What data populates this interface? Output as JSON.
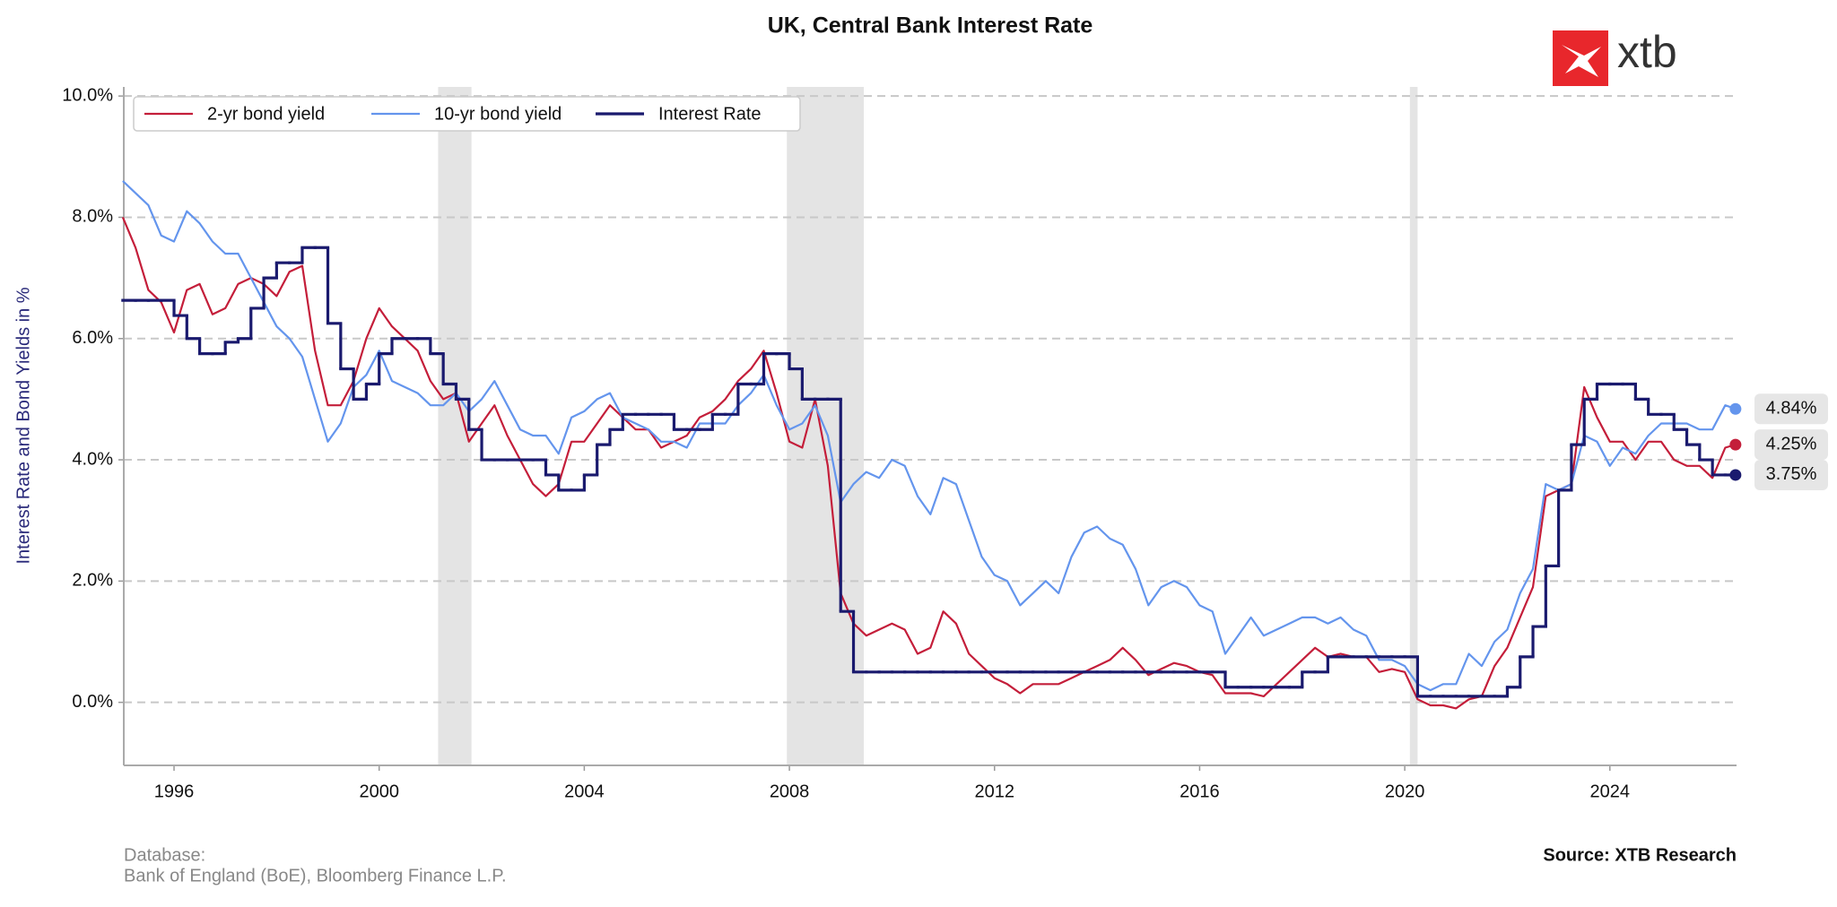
{
  "chart_data": {
    "type": "line",
    "title": "UK, Central Bank Interest Rate",
    "ylabel": "Interest Rate and Bond Yields in %",
    "logo": "xtb",
    "source_note": [
      "Database:",
      "Bank of England (BoE), Bloomberg Finance L.P."
    ],
    "source": "Source: XTB Research",
    "legend": "upper left",
    "grid": true,
    "xlim": [
      1995.02,
      2026.47
    ],
    "ylim": [
      -1.04,
      10.15
    ],
    "xticks": [
      1996,
      2000,
      2004,
      2008,
      2012,
      2016,
      2020,
      2024
    ],
    "yticks": [
      {
        "value": 0,
        "label": "0.0%"
      },
      {
        "value": 2,
        "label": "2.0%"
      },
      {
        "value": 4,
        "label": "4.0%"
      },
      {
        "value": 6,
        "label": "6.0%"
      },
      {
        "value": 8,
        "label": "8.0%"
      },
      {
        "value": 10,
        "label": "10.0%"
      }
    ],
    "shaded_spans": [
      [
        2001.15,
        2001.8
      ],
      [
        2007.95,
        2009.45
      ],
      [
        2020.1,
        2020.25
      ]
    ],
    "x": [
      1995,
      1995.25,
      1995.5,
      1995.75,
      1996,
      1996.25,
      1996.5,
      1996.75,
      1997,
      1997.25,
      1997.5,
      1997.75,
      1998,
      1998.25,
      1998.5,
      1998.75,
      1999,
      1999.25,
      1999.5,
      1999.75,
      2000,
      2000.25,
      2000.5,
      2000.75,
      2001,
      2001.25,
      2001.5,
      2001.75,
      2002,
      2002.25,
      2002.5,
      2002.75,
      2003,
      2003.25,
      2003.5,
      2003.75,
      2004,
      2004.25,
      2004.5,
      2004.75,
      2005,
      2005.25,
      2005.5,
      2005.75,
      2006,
      2006.25,
      2006.5,
      2006.75,
      2007,
      2007.25,
      2007.5,
      2007.75,
      2008,
      2008.25,
      2008.5,
      2008.75,
      2009,
      2009.25,
      2009.5,
      2009.75,
      2010,
      2010.25,
      2010.5,
      2010.75,
      2011,
      2011.25,
      2011.5,
      2011.75,
      2012,
      2012.25,
      2012.5,
      2012.75,
      2013,
      2013.25,
      2013.5,
      2013.75,
      2014,
      2014.25,
      2014.5,
      2014.75,
      2015,
      2015.25,
      2015.5,
      2015.75,
      2016,
      2016.25,
      2016.5,
      2016.75,
      2017,
      2017.25,
      2017.5,
      2017.75,
      2018,
      2018.25,
      2018.5,
      2018.75,
      2019,
      2019.25,
      2019.5,
      2019.75,
      2020,
      2020.25,
      2020.5,
      2020.75,
      2021,
      2021.25,
      2021.5,
      2021.75,
      2022,
      2022.25,
      2022.5,
      2022.75,
      2023,
      2023.25,
      2023.5,
      2023.75,
      2024,
      2024.25,
      2024.5,
      2024.75,
      2025,
      2025.25,
      2025.5,
      2025.75,
      2026,
      2026.25,
      2026.45
    ],
    "series": [
      {
        "name": "2-yr bond yield",
        "color": "#c41e3a",
        "end_label": "4.25%",
        "values": [
          8.0,
          7.5,
          6.8,
          6.6,
          6.1,
          6.8,
          6.9,
          6.4,
          6.5,
          6.9,
          7.0,
          6.9,
          6.7,
          7.1,
          7.2,
          5.8,
          4.9,
          4.9,
          5.3,
          6.0,
          6.5,
          6.2,
          6.0,
          5.8,
          5.3,
          5.0,
          5.1,
          4.3,
          4.6,
          4.9,
          4.4,
          4.0,
          3.6,
          3.4,
          3.6,
          4.3,
          4.3,
          4.6,
          4.9,
          4.7,
          4.5,
          4.5,
          4.2,
          4.3,
          4.4,
          4.7,
          4.8,
          5.0,
          5.3,
          5.5,
          5.8,
          5.1,
          4.3,
          4.2,
          5.0,
          3.9,
          1.8,
          1.3,
          1.1,
          1.2,
          1.3,
          1.2,
          0.8,
          0.9,
          1.5,
          1.3,
          0.8,
          0.6,
          0.4,
          0.3,
          0.15,
          0.3,
          0.3,
          0.3,
          0.4,
          0.5,
          0.6,
          0.7,
          0.9,
          0.7,
          0.45,
          0.55,
          0.65,
          0.6,
          0.5,
          0.45,
          0.15,
          0.15,
          0.15,
          0.1,
          0.3,
          0.5,
          0.7,
          0.9,
          0.75,
          0.8,
          0.75,
          0.75,
          0.5,
          0.55,
          0.5,
          0.05,
          -0.05,
          -0.05,
          -0.1,
          0.05,
          0.1,
          0.6,
          0.9,
          1.4,
          1.9,
          3.4,
          3.5,
          3.6,
          5.2,
          4.7,
          4.3,
          4.3,
          4.0,
          4.3,
          4.3,
          4.0,
          3.9,
          3.9,
          3.7,
          4.2,
          4.25
        ]
      },
      {
        "name": "10-yr bond yield",
        "color": "#6495ed",
        "end_label": "4.84%",
        "values": [
          8.6,
          8.4,
          8.2,
          7.7,
          7.6,
          8.1,
          7.9,
          7.6,
          7.4,
          7.4,
          7.0,
          6.6,
          6.2,
          6.0,
          5.7,
          5.0,
          4.3,
          4.6,
          5.2,
          5.4,
          5.8,
          5.3,
          5.2,
          5.1,
          4.9,
          4.9,
          5.1,
          4.8,
          5.0,
          5.3,
          4.9,
          4.5,
          4.4,
          4.4,
          4.1,
          4.7,
          4.8,
          5.0,
          5.1,
          4.7,
          4.6,
          4.5,
          4.3,
          4.3,
          4.2,
          4.6,
          4.6,
          4.6,
          4.9,
          5.1,
          5.4,
          4.9,
          4.5,
          4.6,
          4.9,
          4.4,
          3.3,
          3.6,
          3.8,
          3.7,
          4.0,
          3.9,
          3.4,
          3.1,
          3.7,
          3.6,
          3.0,
          2.4,
          2.1,
          2.0,
          1.6,
          1.8,
          2.0,
          1.8,
          2.4,
          2.8,
          2.9,
          2.7,
          2.6,
          2.2,
          1.6,
          1.9,
          2.0,
          1.9,
          1.6,
          1.5,
          0.8,
          1.1,
          1.4,
          1.1,
          1.2,
          1.3,
          1.4,
          1.4,
          1.3,
          1.4,
          1.2,
          1.1,
          0.7,
          0.7,
          0.6,
          0.3,
          0.2,
          0.3,
          0.3,
          0.8,
          0.6,
          1.0,
          1.2,
          1.8,
          2.2,
          3.6,
          3.5,
          3.6,
          4.4,
          4.3,
          3.9,
          4.2,
          4.1,
          4.4,
          4.6,
          4.6,
          4.6,
          4.5,
          4.5,
          4.9,
          4.84
        ]
      },
      {
        "name": "Interest Rate",
        "color": "#1a1a6e",
        "step": true,
        "end_label": "3.75%",
        "values": [
          6.63,
          6.63,
          6.63,
          6.63,
          6.38,
          6.0,
          5.75,
          5.75,
          5.94,
          6.0,
          6.5,
          7.0,
          7.25,
          7.25,
          7.5,
          7.5,
          6.25,
          5.5,
          5.0,
          5.25,
          5.75,
          6.0,
          6.0,
          6.0,
          5.75,
          5.25,
          5.0,
          4.5,
          4.0,
          4.0,
          4.0,
          4.0,
          4.0,
          3.75,
          3.5,
          3.5,
          3.75,
          4.25,
          4.5,
          4.75,
          4.75,
          4.75,
          4.75,
          4.5,
          4.5,
          4.5,
          4.75,
          4.75,
          5.25,
          5.25,
          5.75,
          5.75,
          5.5,
          5.0,
          5.0,
          5.0,
          1.5,
          0.5,
          0.5,
          0.5,
          0.5,
          0.5,
          0.5,
          0.5,
          0.5,
          0.5,
          0.5,
          0.5,
          0.5,
          0.5,
          0.5,
          0.5,
          0.5,
          0.5,
          0.5,
          0.5,
          0.5,
          0.5,
          0.5,
          0.5,
          0.5,
          0.5,
          0.5,
          0.5,
          0.5,
          0.5,
          0.25,
          0.25,
          0.25,
          0.25,
          0.25,
          0.25,
          0.5,
          0.5,
          0.75,
          0.75,
          0.75,
          0.75,
          0.75,
          0.75,
          0.75,
          0.1,
          0.1,
          0.1,
          0.1,
          0.1,
          0.1,
          0.1,
          0.25,
          0.75,
          1.25,
          2.25,
          3.5,
          4.25,
          5.0,
          5.25,
          5.25,
          5.25,
          5.0,
          4.75,
          4.75,
          4.5,
          4.25,
          4.0,
          3.75,
          3.75,
          3.75
        ]
      }
    ]
  }
}
